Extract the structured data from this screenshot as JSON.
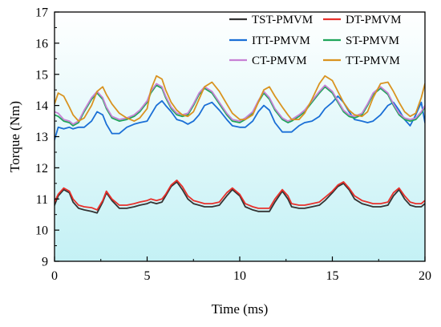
{
  "chart_data": {
    "type": "line",
    "title": "",
    "xlabel": "Time (ms)",
    "ylabel": "Torque (Nm)",
    "xlim": [
      0,
      20
    ],
    "ylim": [
      9,
      17
    ],
    "x_ticks": [
      0,
      5,
      10,
      15,
      20
    ],
    "y_ticks": [
      9,
      10,
      11,
      12,
      13,
      14,
      15,
      16,
      17
    ],
    "grid": false,
    "background_gradient": [
      "#ffffff",
      "#c4f1f5"
    ],
    "legend_position": "top-right",
    "x": [
      0,
      0.2,
      0.5,
      0.8,
      1.0,
      1.3,
      1.6,
      2.0,
      2.3,
      2.6,
      2.8,
      3.1,
      3.5,
      3.9,
      4.3,
      4.6,
      5.0,
      5.2,
      5.5,
      5.8,
      6.0,
      6.3,
      6.6,
      6.9,
      7.2,
      7.5,
      7.8,
      8.1,
      8.5,
      8.9,
      9.3,
      9.6,
      10.0,
      10.3,
      10.7,
      11.0,
      11.3,
      11.6,
      11.9,
      12.3,
      12.6,
      12.8,
      13.2,
      13.5,
      13.9,
      14.3,
      14.6,
      15.0,
      15.3,
      15.6,
      15.9,
      16.2,
      16.6,
      16.9,
      17.2,
      17.6,
      18.0,
      18.3,
      18.6,
      18.9,
      19.2,
      19.5,
      19.8,
      20.0
    ],
    "series": [
      {
        "name": "TST-PMVM",
        "color": "#333333",
        "values": [
          10.8,
          11.1,
          11.3,
          11.2,
          10.9,
          10.7,
          10.65,
          10.6,
          10.55,
          10.9,
          11.2,
          10.95,
          10.7,
          10.7,
          10.75,
          10.8,
          10.85,
          10.9,
          10.85,
          10.9,
          11.1,
          11.4,
          11.55,
          11.3,
          11.0,
          10.85,
          10.8,
          10.75,
          10.75,
          10.8,
          11.1,
          11.3,
          11.1,
          10.75,
          10.65,
          10.6,
          10.6,
          10.6,
          10.9,
          11.25,
          11.0,
          10.75,
          10.7,
          10.7,
          10.75,
          10.8,
          10.95,
          11.2,
          11.4,
          11.5,
          11.3,
          11.0,
          10.85,
          10.8,
          10.75,
          10.75,
          10.8,
          11.1,
          11.3,
          11.0,
          10.8,
          10.75,
          10.75,
          10.85
        ]
      },
      {
        "name": "DT-PMVM",
        "color": "#e8302b",
        "values": [
          10.9,
          11.15,
          11.35,
          11.25,
          11.0,
          10.8,
          10.75,
          10.72,
          10.65,
          10.95,
          11.25,
          11.0,
          10.8,
          10.8,
          10.85,
          10.9,
          10.95,
          11.0,
          10.95,
          11.0,
          11.15,
          11.45,
          11.6,
          11.4,
          11.1,
          10.95,
          10.9,
          10.85,
          10.85,
          10.9,
          11.2,
          11.35,
          11.15,
          10.85,
          10.75,
          10.7,
          10.7,
          10.7,
          11.0,
          11.3,
          11.1,
          10.85,
          10.8,
          10.8,
          10.85,
          10.9,
          11.05,
          11.25,
          11.45,
          11.55,
          11.35,
          11.1,
          10.95,
          10.9,
          10.85,
          10.85,
          10.9,
          11.2,
          11.35,
          11.1,
          10.9,
          10.85,
          10.85,
          10.95
        ]
      },
      {
        "name": "ITT-PMVM",
        "color": "#1a6fd6",
        "values": [
          12.9,
          13.3,
          13.25,
          13.3,
          13.25,
          13.3,
          13.3,
          13.5,
          13.8,
          13.7,
          13.4,
          13.1,
          13.1,
          13.3,
          13.4,
          13.45,
          13.5,
          13.7,
          14.0,
          14.15,
          14.0,
          13.8,
          13.55,
          13.5,
          13.4,
          13.5,
          13.7,
          14.0,
          14.1,
          13.85,
          13.55,
          13.35,
          13.3,
          13.3,
          13.5,
          13.8,
          14.0,
          13.85,
          13.45,
          13.15,
          13.15,
          13.15,
          13.35,
          13.45,
          13.5,
          13.65,
          13.9,
          14.1,
          14.3,
          14.1,
          13.8,
          13.55,
          13.5,
          13.45,
          13.5,
          13.7,
          14.0,
          14.1,
          13.85,
          13.55,
          13.35,
          13.7,
          14.1,
          13.45
        ]
      },
      {
        "name": "ST-PMVM",
        "color": "#1fa55a",
        "values": [
          13.7,
          13.65,
          13.5,
          13.45,
          13.35,
          13.45,
          13.8,
          14.2,
          14.4,
          14.2,
          13.9,
          13.6,
          13.5,
          13.55,
          13.65,
          13.8,
          14.1,
          14.4,
          14.65,
          14.55,
          14.25,
          13.9,
          13.7,
          13.65,
          13.7,
          14.0,
          14.35,
          14.55,
          14.4,
          14.05,
          13.7,
          13.5,
          13.45,
          13.55,
          13.75,
          14.1,
          14.4,
          14.2,
          13.85,
          13.55,
          13.45,
          13.5,
          13.65,
          13.8,
          14.1,
          14.4,
          14.6,
          14.4,
          14.1,
          13.8,
          13.65,
          13.6,
          13.7,
          14.0,
          14.35,
          14.55,
          14.35,
          14.0,
          13.7,
          13.55,
          13.5,
          13.55,
          13.75,
          13.95
        ]
      },
      {
        "name": "CT-PMVM",
        "color": "#c781d4",
        "values": [
          13.8,
          13.75,
          13.55,
          13.5,
          13.4,
          13.5,
          13.85,
          14.25,
          14.45,
          14.25,
          13.95,
          13.65,
          13.55,
          13.6,
          13.7,
          13.85,
          14.15,
          14.45,
          14.7,
          14.6,
          14.3,
          13.95,
          13.75,
          13.7,
          13.75,
          14.05,
          14.4,
          14.6,
          14.45,
          14.1,
          13.75,
          13.55,
          13.5,
          13.6,
          13.8,
          14.15,
          14.45,
          14.25,
          13.9,
          13.6,
          13.5,
          13.55,
          13.7,
          13.85,
          14.15,
          14.45,
          14.65,
          14.45,
          14.15,
          13.85,
          13.7,
          13.65,
          13.75,
          14.05,
          14.4,
          14.6,
          14.4,
          14.05,
          13.75,
          13.6,
          13.55,
          13.6,
          13.8,
          14.0
        ]
      },
      {
        "name": "TT-PMVM",
        "color": "#d99320",
        "values": [
          14.05,
          14.4,
          14.3,
          13.95,
          13.7,
          13.5,
          13.6,
          14.0,
          14.45,
          14.6,
          14.35,
          14.05,
          13.75,
          13.6,
          13.5,
          13.6,
          13.9,
          14.5,
          14.95,
          14.85,
          14.5,
          14.1,
          13.85,
          13.7,
          13.65,
          13.8,
          14.2,
          14.6,
          14.75,
          14.45,
          14.05,
          13.75,
          13.55,
          13.55,
          13.7,
          14.1,
          14.5,
          14.6,
          14.3,
          13.95,
          13.7,
          13.55,
          13.55,
          13.75,
          14.2,
          14.7,
          14.95,
          14.8,
          14.45,
          14.1,
          13.85,
          13.7,
          13.65,
          13.8,
          14.25,
          14.7,
          14.75,
          14.45,
          14.1,
          13.8,
          13.65,
          13.75,
          14.25,
          14.7
        ]
      }
    ]
  }
}
